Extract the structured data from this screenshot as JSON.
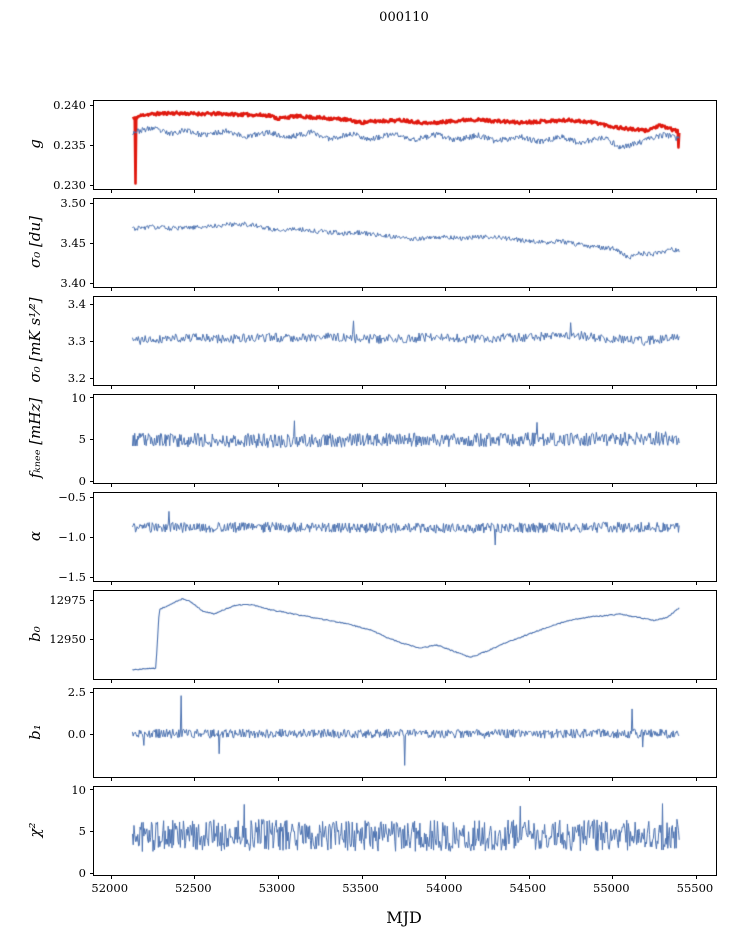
{
  "title": "000110",
  "xlabel": "MJD",
  "colors": {
    "axis": "#000000",
    "series_blue": "#4c72b0",
    "series_red": "#e0190f"
  },
  "chart_data": {
    "type": "line",
    "title": "000110",
    "xlabel": "MJD",
    "x_range": [
      51900,
      55620
    ],
    "x_ticks": [
      {
        "v": 52000,
        "label": "52000"
      },
      {
        "v": 52500,
        "label": "52500"
      },
      {
        "v": 53000,
        "label": "53000"
      },
      {
        "v": 53500,
        "label": "53500"
      },
      {
        "v": 54000,
        "label": "54000"
      },
      {
        "v": 54500,
        "label": "54500"
      },
      {
        "v": 55000,
        "label": "55000"
      },
      {
        "v": 55500,
        "label": "55500"
      }
    ],
    "grid": false,
    "legend": "none",
    "panels": [
      {
        "ylabel": "g",
        "ylim": [
          0.2295,
          0.2405
        ],
        "yticks": [
          {
            "v": 0.23,
            "label": "0.230"
          },
          {
            "v": 0.235,
            "label": "0.235"
          },
          {
            "v": 0.24,
            "label": "0.240"
          }
        ],
        "series": [
          {
            "name": "g-corrected",
            "color": "#e0190f",
            "width": 2.6,
            "n": 720,
            "seed": 11,
            "noise": 0.0002,
            "anchors": [
              [
                52130,
                0.2383
              ],
              [
                52200,
                0.2388
              ],
              [
                52350,
                0.239
              ],
              [
                52500,
                0.2389
              ],
              [
                52650,
                0.2389
              ],
              [
                52800,
                0.2388
              ],
              [
                52950,
                0.2387
              ],
              [
                53000,
                0.2383
              ],
              [
                53100,
                0.2386
              ],
              [
                53250,
                0.2384
              ],
              [
                53400,
                0.2382
              ],
              [
                53500,
                0.2378
              ],
              [
                53600,
                0.238
              ],
              [
                53750,
                0.2381
              ],
              [
                53900,
                0.2377
              ],
              [
                54000,
                0.2379
              ],
              [
                54150,
                0.2382
              ],
              [
                54300,
                0.238
              ],
              [
                54450,
                0.2378
              ],
              [
                54600,
                0.238
              ],
              [
                54750,
                0.2381
              ],
              [
                54900,
                0.2378
              ],
              [
                55000,
                0.2373
              ],
              [
                55100,
                0.237
              ],
              [
                55200,
                0.2368
              ],
              [
                55280,
                0.2374
              ],
              [
                55340,
                0.2371
              ],
              [
                55400,
                0.2366
              ]
            ],
            "spikes": [
              [
                52150,
                0.2302
              ],
              [
                55395,
                0.2347
              ]
            ]
          },
          {
            "name": "g-raw",
            "color": "#4c72b0",
            "width": 1.0,
            "n": 720,
            "seed": 23,
            "noise": 0.00035,
            "anchors": [
              [
                52130,
                0.2366
              ],
              [
                52250,
                0.2371
              ],
              [
                52350,
                0.2364
              ],
              [
                52450,
                0.2369
              ],
              [
                52550,
                0.2362
              ],
              [
                52700,
                0.2368
              ],
              [
                52800,
                0.236
              ],
              [
                52950,
                0.2366
              ],
              [
                53050,
                0.2359
              ],
              [
                53200,
                0.2366
              ],
              [
                53300,
                0.2358
              ],
              [
                53450,
                0.2364
              ],
              [
                53550,
                0.2357
              ],
              [
                53700,
                0.2364
              ],
              [
                53800,
                0.2356
              ],
              [
                53950,
                0.2363
              ],
              [
                54050,
                0.2356
              ],
              [
                54200,
                0.2362
              ],
              [
                54300,
                0.2355
              ],
              [
                54450,
                0.2361
              ],
              [
                54550,
                0.2354
              ],
              [
                54700,
                0.236
              ],
              [
                54800,
                0.2353
              ],
              [
                54950,
                0.2359
              ],
              [
                55050,
                0.2347
              ],
              [
                55150,
                0.2352
              ],
              [
                55250,
                0.236
              ],
              [
                55320,
                0.2363
              ],
              [
                55400,
                0.2357
              ]
            ],
            "spikes": []
          }
        ]
      },
      {
        "ylabel": "σ₀ [du]",
        "ylim": [
          3.395,
          3.505
        ],
        "yticks": [
          {
            "v": 3.4,
            "label": "3.40"
          },
          {
            "v": 3.45,
            "label": "3.45"
          },
          {
            "v": 3.5,
            "label": "3.50"
          }
        ],
        "series": [
          {
            "name": "sigma0-du",
            "color": "#4c72b0",
            "width": 1.0,
            "n": 650,
            "seed": 31,
            "noise": 0.003,
            "anchors": [
              [
                52130,
                3.468
              ],
              [
                52250,
                3.47
              ],
              [
                52400,
                3.468
              ],
              [
                52550,
                3.47
              ],
              [
                52700,
                3.473
              ],
              [
                52800,
                3.474
              ],
              [
                52900,
                3.47
              ],
              [
                53000,
                3.466
              ],
              [
                53100,
                3.468
              ],
              [
                53200,
                3.465
              ],
              [
                53300,
                3.464
              ],
              [
                53400,
                3.462
              ],
              [
                53500,
                3.463
              ],
              [
                53600,
                3.46
              ],
              [
                53700,
                3.458
              ],
              [
                53800,
                3.455
              ],
              [
                53900,
                3.456
              ],
              [
                54000,
                3.458
              ],
              [
                54100,
                3.456
              ],
              [
                54200,
                3.457
              ],
              [
                54300,
                3.458
              ],
              [
                54400,
                3.455
              ],
              [
                54500,
                3.452
              ],
              [
                54600,
                3.451
              ],
              [
                54700,
                3.452
              ],
              [
                54800,
                3.448
              ],
              [
                54900,
                3.445
              ],
              [
                55000,
                3.443
              ],
              [
                55100,
                3.432
              ],
              [
                55150,
                3.437
              ],
              [
                55250,
                3.436
              ],
              [
                55350,
                3.442
              ],
              [
                55400,
                3.44
              ]
            ],
            "spikes": []
          }
        ]
      },
      {
        "ylabel": "σ₀ [mK s¹⁄²]",
        "ylim": [
          3.18,
          3.42
        ],
        "yticks": [
          {
            "v": 3.2,
            "label": "3.2"
          },
          {
            "v": 3.3,
            "label": "3.3"
          },
          {
            "v": 3.4,
            "label": "3.4"
          }
        ],
        "series": [
          {
            "name": "sigma0-mK",
            "color": "#4c72b0",
            "width": 1.0,
            "n": 560,
            "seed": 41,
            "noise": 0.013,
            "anchors": [
              [
                52130,
                3.3
              ],
              [
                52400,
                3.31
              ],
              [
                52700,
                3.305
              ],
              [
                53000,
                3.31
              ],
              [
                53300,
                3.31
              ],
              [
                53600,
                3.305
              ],
              [
                53900,
                3.31
              ],
              [
                54200,
                3.305
              ],
              [
                54500,
                3.31
              ],
              [
                54800,
                3.315
              ],
              [
                55000,
                3.305
              ],
              [
                55200,
                3.3
              ],
              [
                55400,
                3.31
              ]
            ],
            "spikes": [
              [
                53450,
                3.355
              ],
              [
                54750,
                3.35
              ]
            ]
          }
        ]
      },
      {
        "ylabel": "fₖₙₑₑ [mHz]",
        "ylim": [
          -0.3,
          10.3
        ],
        "yticks": [
          {
            "v": 0,
            "label": "0"
          },
          {
            "v": 5,
            "label": "5"
          },
          {
            "v": 10,
            "label": "10"
          }
        ],
        "series": [
          {
            "name": "f-knee",
            "color": "#4c72b0",
            "width": 1.0,
            "n": 720,
            "seed": 53,
            "noise": 0.85,
            "anchors": [
              [
                52130,
                4.9
              ],
              [
                53000,
                4.8
              ],
              [
                54000,
                4.9
              ],
              [
                55000,
                5.0
              ],
              [
                55400,
                5.1
              ]
            ],
            "spikes": [
              [
                53100,
                7.2
              ],
              [
                54550,
                7.0
              ]
            ]
          }
        ]
      },
      {
        "ylabel": "α",
        "ylim": [
          -1.55,
          -0.45
        ],
        "yticks": [
          {
            "v": -1.5,
            "label": "−1.5"
          },
          {
            "v": -1.0,
            "label": "−1.0"
          },
          {
            "v": -0.5,
            "label": "−0.5"
          }
        ],
        "series": [
          {
            "name": "alpha",
            "color": "#4c72b0",
            "width": 1.0,
            "n": 720,
            "seed": 61,
            "noise": 0.065,
            "anchors": [
              [
                52130,
                -0.88
              ],
              [
                53000,
                -0.88
              ],
              [
                54000,
                -0.89
              ],
              [
                55000,
                -0.88
              ],
              [
                55400,
                -0.88
              ]
            ],
            "spikes": [
              [
                52350,
                -0.68
              ],
              [
                54300,
                -1.1
              ]
            ]
          }
        ]
      },
      {
        "ylabel": "b₀",
        "ylim": [
          12924,
          12981
        ],
        "yticks": [
          {
            "v": 12950,
            "label": "12950"
          },
          {
            "v": 12975,
            "label": "12975"
          }
        ],
        "series": [
          {
            "name": "b0",
            "color": "#4c72b0",
            "width": 1.1,
            "n": 520,
            "seed": 71,
            "noise": 0.35,
            "anchors": [
              [
                52130,
                12930
              ],
              [
                52270,
                12931
              ],
              [
                52290,
                12969
              ],
              [
                52350,
                12972
              ],
              [
                52430,
                12976
              ],
              [
                52480,
                12974
              ],
              [
                52550,
                12968
              ],
              [
                52620,
                12966
              ],
              [
                52700,
                12970
              ],
              [
                52760,
                12972
              ],
              [
                52850,
                12972
              ],
              [
                52950,
                12969
              ],
              [
                53100,
                12966
              ],
              [
                53250,
                12963
              ],
              [
                53400,
                12960
              ],
              [
                53550,
                12956
              ],
              [
                53650,
                12951
              ],
              [
                53750,
                12947
              ],
              [
                53850,
                12944
              ],
              [
                53950,
                12946
              ],
              [
                54050,
                12942
              ],
              [
                54150,
                12938
              ],
              [
                54250,
                12942
              ],
              [
                54350,
                12947
              ],
              [
                54450,
                12951
              ],
              [
                54550,
                12955
              ],
              [
                54650,
                12959
              ],
              [
                54750,
                12962
              ],
              [
                54850,
                12964
              ],
              [
                54950,
                12965
              ],
              [
                55050,
                12966
              ],
              [
                55150,
                12964
              ],
              [
                55250,
                12962
              ],
              [
                55330,
                12964
              ],
              [
                55400,
                12970
              ]
            ],
            "spikes": []
          }
        ]
      },
      {
        "ylabel": "b₁",
        "ylim": [
          -2.6,
          2.7
        ],
        "yticks": [
          {
            "v": 0.0,
            "label": "0.0"
          },
          {
            "v": 2.5,
            "label": "2.5"
          }
        ],
        "series": [
          {
            "name": "b1",
            "color": "#4c72b0",
            "width": 1.0,
            "n": 720,
            "seed": 83,
            "noise": 0.28,
            "anchors": [
              [
                52130,
                0.0
              ],
              [
                53000,
                0.02
              ],
              [
                54000,
                0.0
              ],
              [
                55000,
                0.02
              ],
              [
                55400,
                0.0
              ]
            ],
            "spikes": [
              [
                52200,
                -0.7
              ],
              [
                52420,
                2.3
              ],
              [
                52650,
                -1.2
              ],
              [
                53760,
                -1.9
              ],
              [
                55120,
                1.5
              ],
              [
                55180,
                -0.8
              ]
            ]
          }
        ]
      },
      {
        "ylabel": "χ²",
        "ylim": [
          -0.3,
          10.3
        ],
        "yticks": [
          {
            "v": 0,
            "label": "0"
          },
          {
            "v": 5,
            "label": "5"
          },
          {
            "v": 10,
            "label": "10"
          }
        ],
        "series": [
          {
            "name": "chi2",
            "color": "#4c72b0",
            "width": 1.0,
            "n": 720,
            "seed": 97,
            "noise": 1.9,
            "anchors": [
              [
                52130,
                4.4
              ],
              [
                53000,
                4.5
              ],
              [
                54000,
                4.4
              ],
              [
                55000,
                4.5
              ],
              [
                55400,
                4.6
              ]
            ],
            "spikes": [
              [
                52800,
                8.2
              ],
              [
                54450,
                8.0
              ],
              [
                55300,
                8.3
              ]
            ]
          }
        ]
      }
    ]
  }
}
